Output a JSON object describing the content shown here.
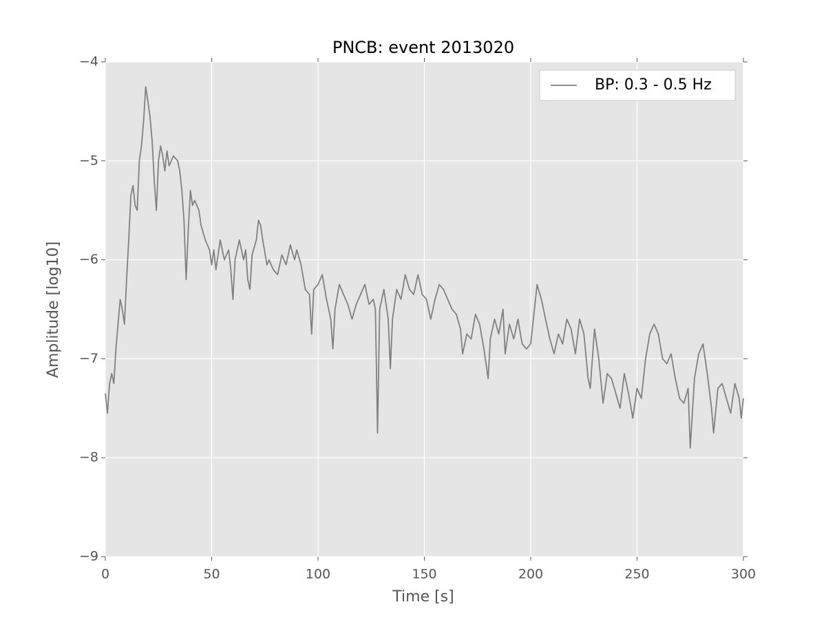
{
  "chart_data": {
    "type": "line",
    "title": "PNCB: event 2013020",
    "xlabel": "Time [s]",
    "ylabel": "Amplitude [log10]",
    "xlim": [
      0,
      300
    ],
    "xticks": [
      0,
      50,
      100,
      150,
      200,
      250,
      300
    ],
    "ylim": [
      -9,
      -4
    ],
    "yticks": [
      {
        "value": -9,
        "label": "−9"
      },
      {
        "value": -8,
        "label": "−8"
      },
      {
        "value": -7,
        "label": "−7"
      },
      {
        "value": -6,
        "label": "−6"
      },
      {
        "value": -5,
        "label": "−5"
      },
      {
        "value": -4,
        "label": "−4"
      }
    ],
    "grid": true,
    "legend": "upper right",
    "x": [
      0,
      1,
      2,
      3,
      4,
      5,
      6,
      7,
      8,
      9,
      10,
      11,
      12,
      13,
      14,
      15,
      16,
      17,
      18,
      19,
      20,
      21,
      22,
      23,
      24,
      25,
      26,
      27,
      28,
      29,
      30,
      32,
      34,
      35,
      36,
      37,
      38,
      39,
      40,
      41,
      42,
      44,
      45,
      47,
      49,
      50,
      51,
      52,
      54,
      56,
      58,
      59,
      60,
      61,
      63,
      65,
      66,
      67,
      68,
      69,
      71,
      72,
      73,
      74,
      76,
      77,
      79,
      81,
      83,
      85,
      87,
      89,
      90,
      92,
      94,
      96,
      97,
      98,
      100,
      102,
      104,
      106,
      107,
      108,
      110,
      112,
      114,
      116,
      118,
      120,
      122,
      124,
      126,
      127,
      128,
      129,
      131,
      133,
      134,
      135,
      137,
      139,
      141,
      143,
      145,
      147,
      149,
      151,
      153,
      155,
      157,
      159,
      161,
      163,
      165,
      167,
      168,
      170,
      172,
      174,
      176,
      178,
      180,
      181,
      183,
      185,
      187,
      188,
      190,
      192,
      194,
      196,
      198,
      200,
      202,
      203,
      205,
      207,
      209,
      211,
      213,
      215,
      217,
      219,
      221,
      223,
      225,
      227,
      228,
      230,
      232,
      234,
      236,
      238,
      240,
      242,
      244,
      246,
      248,
      250,
      252,
      254,
      256,
      258,
      260,
      262,
      264,
      266,
      268,
      270,
      272,
      274,
      275,
      277,
      279,
      281,
      283,
      285,
      286,
      288,
      290,
      292,
      294,
      296,
      298,
      299,
      300
    ],
    "series": [
      {
        "name": "BP: 0.3 - 0.5 Hz",
        "color": "#808080",
        "values": [
          -7.35,
          -7.55,
          -7.25,
          -7.15,
          -7.25,
          -6.9,
          -6.65,
          -6.4,
          -6.5,
          -6.65,
          -6.2,
          -5.8,
          -5.35,
          -5.25,
          -5.45,
          -5.5,
          -5.0,
          -4.85,
          -4.6,
          -4.25,
          -4.4,
          -4.55,
          -4.8,
          -5.2,
          -5.5,
          -5.0,
          -4.85,
          -4.95,
          -5.1,
          -4.9,
          -5.05,
          -4.95,
          -5.0,
          -5.1,
          -5.3,
          -5.6,
          -6.2,
          -5.7,
          -5.3,
          -5.45,
          -5.4,
          -5.5,
          -5.65,
          -5.8,
          -5.9,
          -6.05,
          -5.9,
          -6.1,
          -5.8,
          -6.0,
          -5.9,
          -6.1,
          -6.4,
          -6.0,
          -5.8,
          -6.0,
          -5.9,
          -6.2,
          -6.3,
          -5.95,
          -5.8,
          -5.6,
          -5.65,
          -5.8,
          -6.05,
          -6.0,
          -6.1,
          -6.15,
          -5.95,
          -6.05,
          -5.85,
          -6.0,
          -5.9,
          -6.05,
          -6.3,
          -6.35,
          -6.75,
          -6.3,
          -6.25,
          -6.15,
          -6.4,
          -6.6,
          -6.9,
          -6.5,
          -6.25,
          -6.35,
          -6.45,
          -6.6,
          -6.45,
          -6.35,
          -6.25,
          -6.45,
          -6.4,
          -6.5,
          -7.75,
          -6.5,
          -6.3,
          -6.6,
          -7.1,
          -6.6,
          -6.3,
          -6.4,
          -6.15,
          -6.3,
          -6.35,
          -6.15,
          -6.35,
          -6.4,
          -6.6,
          -6.4,
          -6.25,
          -6.3,
          -6.4,
          -6.5,
          -6.55,
          -6.7,
          -6.95,
          -6.75,
          -6.8,
          -6.55,
          -6.65,
          -6.9,
          -7.2,
          -6.8,
          -6.6,
          -6.75,
          -6.5,
          -6.95,
          -6.65,
          -6.8,
          -6.6,
          -6.85,
          -6.9,
          -6.85,
          -6.45,
          -6.25,
          -6.4,
          -6.6,
          -6.8,
          -6.95,
          -6.75,
          -6.85,
          -6.6,
          -6.7,
          -6.95,
          -6.6,
          -6.75,
          -7.2,
          -7.3,
          -6.7,
          -7.0,
          -7.45,
          -7.15,
          -7.2,
          -7.35,
          -7.5,
          -7.15,
          -7.35,
          -7.6,
          -7.3,
          -7.4,
          -7.0,
          -6.75,
          -6.65,
          -6.75,
          -7.0,
          -7.05,
          -6.95,
          -7.2,
          -7.4,
          -7.45,
          -7.3,
          -7.9,
          -7.2,
          -6.95,
          -6.85,
          -7.15,
          -7.5,
          -7.75,
          -7.3,
          -7.25,
          -7.4,
          -7.55,
          -7.25,
          -7.4,
          -7.6,
          -7.4
        ]
      }
    ]
  }
}
